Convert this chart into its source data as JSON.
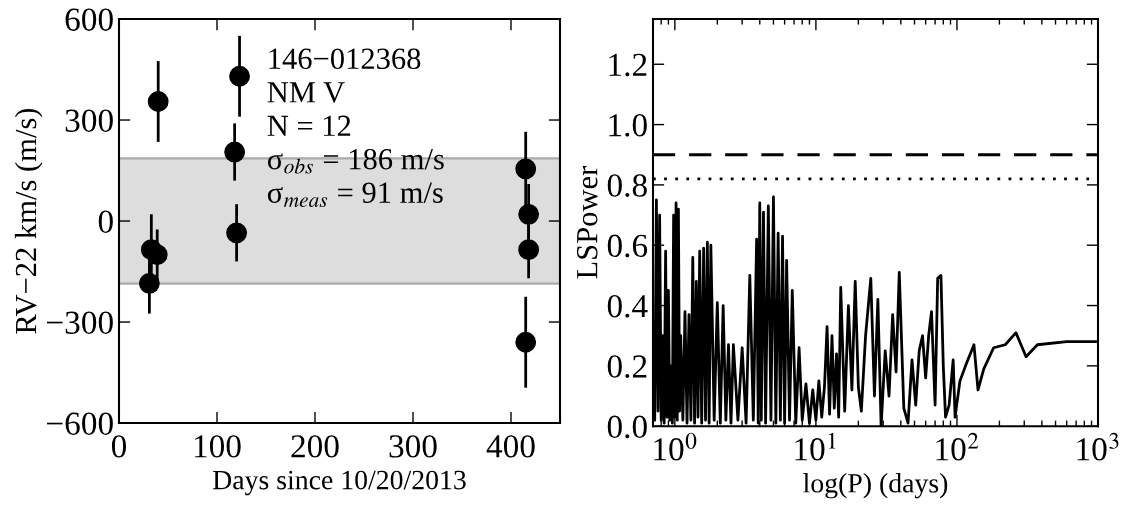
{
  "chart_data": [
    {
      "type": "scatter",
      "xlabel": "Days since 10/20/2013",
      "ylabel": "RV−22 km/s (m/s)",
      "marker": "circle",
      "grid": false,
      "legend": false,
      "x": [
        31,
        33,
        36,
        39,
        40,
        118,
        120,
        123,
        415,
        418,
        418,
        415
      ],
      "values": [
        -185,
        -85,
        null,
        -100,
        355,
        205,
        -35,
        430,
        155,
        20,
        -85,
        -360
      ],
      "errors": [
        90,
        105,
        null,
        75,
        120,
        85,
        85,
        120,
        110,
        90,
        85,
        135
      ],
      "color": "#000000",
      "xlim": [
        0,
        450
      ],
      "xticks": [
        0,
        100,
        200,
        300,
        400
      ],
      "ylim": [
        -600,
        600
      ],
      "yticks": [
        {
          "value": -600,
          "label": "−600"
        },
        {
          "value": -300,
          "label": "−300"
        },
        0,
        300,
        600
      ],
      "bands": [
        {
          "axis": "y",
          "from": -186,
          "to": 186,
          "color": "#dddddd"
        }
      ],
      "annotations": [
        "146−012368",
        "NM V",
        "N = 12",
        "σ$_{obs}$ = 186 m/s",
        "σ$_{meas}$ = 91 m/s"
      ]
    },
    {
      "type": "line",
      "xlabel": "log(P) (days)",
      "ylabel": "LSPower",
      "log": "x",
      "grid": false,
      "legend": false,
      "color": "#000000",
      "line_style": "solid",
      "x": [
        0.7,
        0.72,
        0.74,
        0.76,
        0.78,
        0.8,
        0.82,
        0.84,
        0.86,
        0.88,
        0.9,
        0.92,
        0.94,
        0.96,
        0.98,
        1.0,
        1.02,
        1.04,
        1.06,
        1.08,
        1.1,
        1.14,
        1.18,
        1.22,
        1.26,
        1.3,
        1.34,
        1.38,
        1.42,
        1.46,
        1.5,
        1.55,
        1.6,
        1.65,
        1.7,
        1.75,
        1.8,
        1.9,
        2.0,
        2.1,
        2.2,
        2.3,
        2.4,
        2.5,
        2.6,
        2.8,
        3.0,
        3.2,
        3.4,
        3.6,
        3.8,
        3.9,
        4.0,
        4.1,
        4.25,
        4.4,
        4.6,
        4.8,
        5.0,
        5.2,
        5.4,
        5.6,
        5.8,
        6.0,
        6.2,
        6.5,
        6.8,
        7.2,
        7.6,
        8.0,
        8.5,
        9.0,
        9.5,
        10.0,
        10.5,
        11.0,
        11.5,
        12.0,
        12.5,
        13.0,
        13.5,
        14.0,
        14.5,
        15.0,
        16.0,
        17.0,
        18.0,
        19.0,
        20.0,
        21.0,
        22.5,
        24.5,
        26.0,
        27.5,
        29.0,
        31.0,
        33.0,
        35.0,
        37.0,
        39.0,
        42.0,
        45.0,
        48.0,
        51.0,
        54.0,
        57.0,
        60.0,
        63.0,
        66.0,
        70.0,
        73.0,
        77.0,
        80.0,
        83.0,
        88.0,
        94.0,
        97.0,
        105.0,
        115.0,
        132.0,
        141.0,
        155.0,
        182.0,
        220.0,
        262.0,
        309.0,
        372.0,
        600.0,
        1000.0
      ],
      "values": [
        0.35,
        0.02,
        0.75,
        0.05,
        0.7,
        0.02,
        0.3,
        0.01,
        0.58,
        0.03,
        0.45,
        0.02,
        0.2,
        0.01,
        0.7,
        0.03,
        0.74,
        0.02,
        0.72,
        0.05,
        0.3,
        0.02,
        0.38,
        0.01,
        0.37,
        0.02,
        0.56,
        0.01,
        0.48,
        0.03,
        0.58,
        0.01,
        0.59,
        0.02,
        0.61,
        0.01,
        0.6,
        0.02,
        0.41,
        0.01,
        0.4,
        0.02,
        0.27,
        0.01,
        0.27,
        0.02,
        0.26,
        0.01,
        0.5,
        0.02,
        0.62,
        0.01,
        0.74,
        0.02,
        0.71,
        0.01,
        0.73,
        0.02,
        0.76,
        0.01,
        0.64,
        0.02,
        0.63,
        0.01,
        0.55,
        0.02,
        0.45,
        0.01,
        0.26,
        0.02,
        0.14,
        0.01,
        0.12,
        0.02,
        0.15,
        0.03,
        0.13,
        0.33,
        0.04,
        0.3,
        0.06,
        0.24,
        0.03,
        0.46,
        0.05,
        0.4,
        0.12,
        0.48,
        0.13,
        0.05,
        0.3,
        0.49,
        0.1,
        0.42,
        0.0,
        0.25,
        0.1,
        0.37,
        0.18,
        0.51,
        0.06,
        0.01,
        0.22,
        0.07,
        0.25,
        0.3,
        0.16,
        0.3,
        0.38,
        0.07,
        0.49,
        0.5,
        0.2,
        0.03,
        0.07,
        0.22,
        0.03,
        0.15,
        0.2,
        0.27,
        0.12,
        0.19,
        0.26,
        0.27,
        0.31,
        0.23,
        0.27,
        0.28,
        0.28
      ],
      "xlim": [
        0.7,
        1000
      ],
      "xticks": [
        {
          "value": 1,
          "label": "10$^{0}$"
        },
        {
          "value": 10,
          "label": "10$^{1}$"
        },
        {
          "value": 100,
          "label": "10$^{2}$"
        },
        {
          "value": 1000,
          "label": "10$^{3}$"
        }
      ],
      "ylim": [
        0,
        1.35
      ],
      "yticks": [
        {
          "value": 0,
          "label": "0.0"
        },
        {
          "value": 0.2,
          "label": "0.2"
        },
        {
          "value": 0.4,
          "label": "0.4"
        },
        {
          "value": 0.6,
          "label": "0.6"
        },
        {
          "value": 0.8,
          "label": "0.8"
        },
        {
          "value": 1.0,
          "label": "1.0"
        },
        {
          "value": 1.2,
          "label": "1.2"
        }
      ],
      "ref_lines": [
        {
          "axis": "y",
          "value": 0.9,
          "line_style": "dashed",
          "color": "#000000"
        },
        {
          "axis": "y",
          "value": 0.82,
          "line_style": "dotted",
          "color": "#000000"
        }
      ]
    }
  ]
}
